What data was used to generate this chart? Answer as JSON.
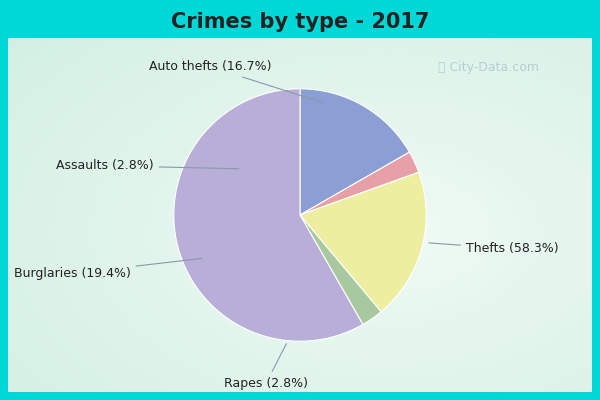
{
  "title": "Crimes by type - 2017",
  "values": [
    58.3,
    16.7,
    2.8,
    19.4,
    2.8
  ],
  "colors": [
    "#b8aed8",
    "#8b9fd4",
    "#e8a0a8",
    "#eeeea0",
    "#a8c8a0"
  ],
  "label_texts": [
    "Thefts (58.3%)",
    "Auto thefts (16.7%)",
    "Assaults (2.8%)",
    "Burglaries (19.4%)",
    "Rapes (2.8%)"
  ],
  "bg_border": "#00d8d8",
  "bg_inner": "#d4ede0",
  "bg_center": "#f0f8f4",
  "title_fontsize": 15,
  "label_fontsize": 9,
  "border_width": 8
}
